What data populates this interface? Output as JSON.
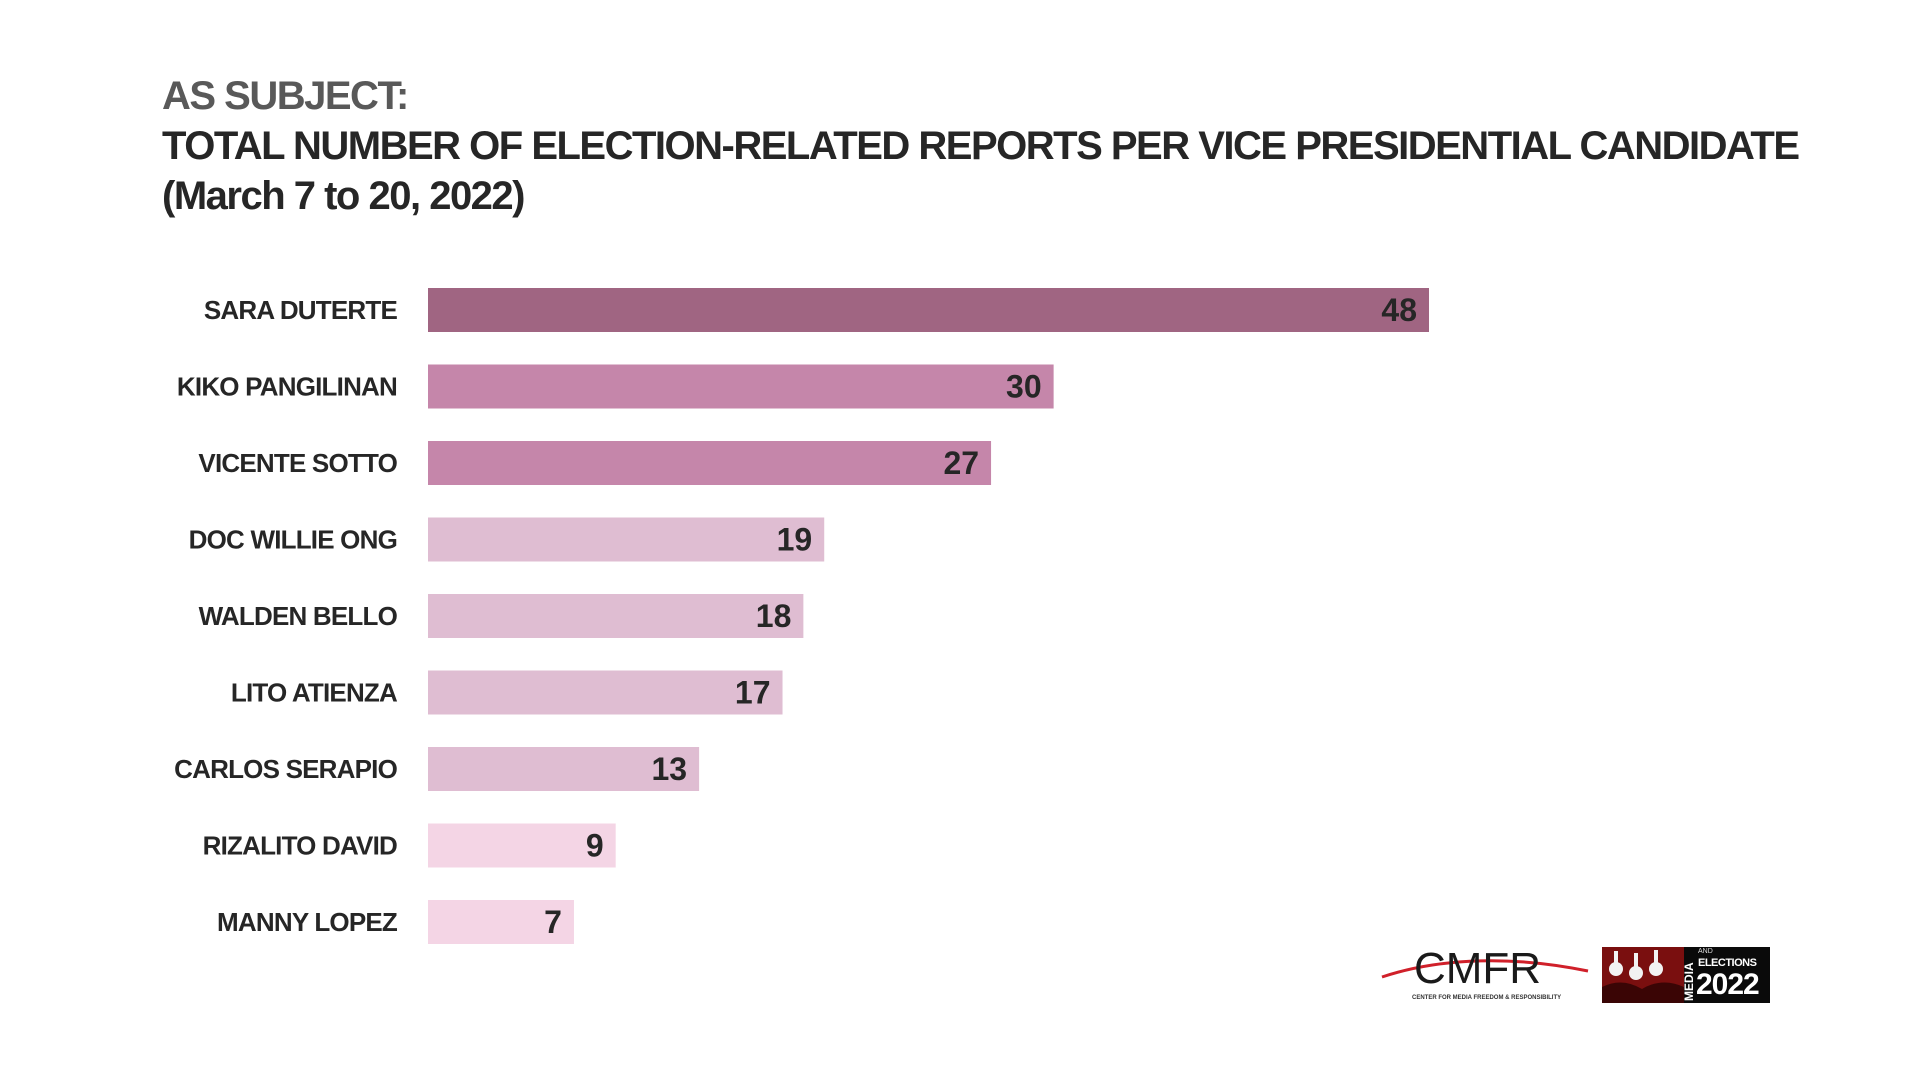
{
  "header": {
    "subtitle": "AS SUBJECT:",
    "title": "TOTAL NUMBER OF  ELECTION-RELATED REPORTS PER VICE PRESIDENTIAL CANDIDATE",
    "period": "(March 7 to 20, 2022)"
  },
  "chart_data": {
    "type": "bar",
    "orientation": "horizontal",
    "title": "TOTAL NUMBER OF  ELECTION-RELATED REPORTS PER VICE PRESIDENTIAL CANDIDATE",
    "categories": [
      "SARA DUTERTE",
      "KIKO PANGILINAN",
      "VICENTE SOTTO",
      "DOC WILLIE ONG",
      "WALDEN BELLO",
      "LITO ATIENZA",
      "CARLOS SERAPIO",
      "RIZALITO DAVID",
      "MANNY LOPEZ"
    ],
    "values": [
      48,
      30,
      27,
      19,
      18,
      17,
      13,
      9,
      7
    ],
    "bar_colors": [
      "#a06582",
      "#c586aa",
      "#c586aa",
      "#dfbdd2",
      "#dfbdd2",
      "#dfbdd2",
      "#dfbdd2",
      "#f4d5e5",
      "#f4d5e5"
    ],
    "xlim": [
      0,
      48
    ],
    "grid": false,
    "data_labels": "inside-end",
    "xlabel": "",
    "ylabel": ""
  },
  "logos": {
    "cmfr": {
      "wordmark": "CMFR",
      "tagline": "CENTER FOR MEDIA FREEDOM & RESPONSIBILITY",
      "swoosh_color": "#d0202a"
    },
    "media_elections": {
      "vertical_word": "MEDIA",
      "small_word": "AND",
      "word": "ELECTIONS",
      "year": "2022",
      "accent_color": "#7a0f0f"
    }
  }
}
